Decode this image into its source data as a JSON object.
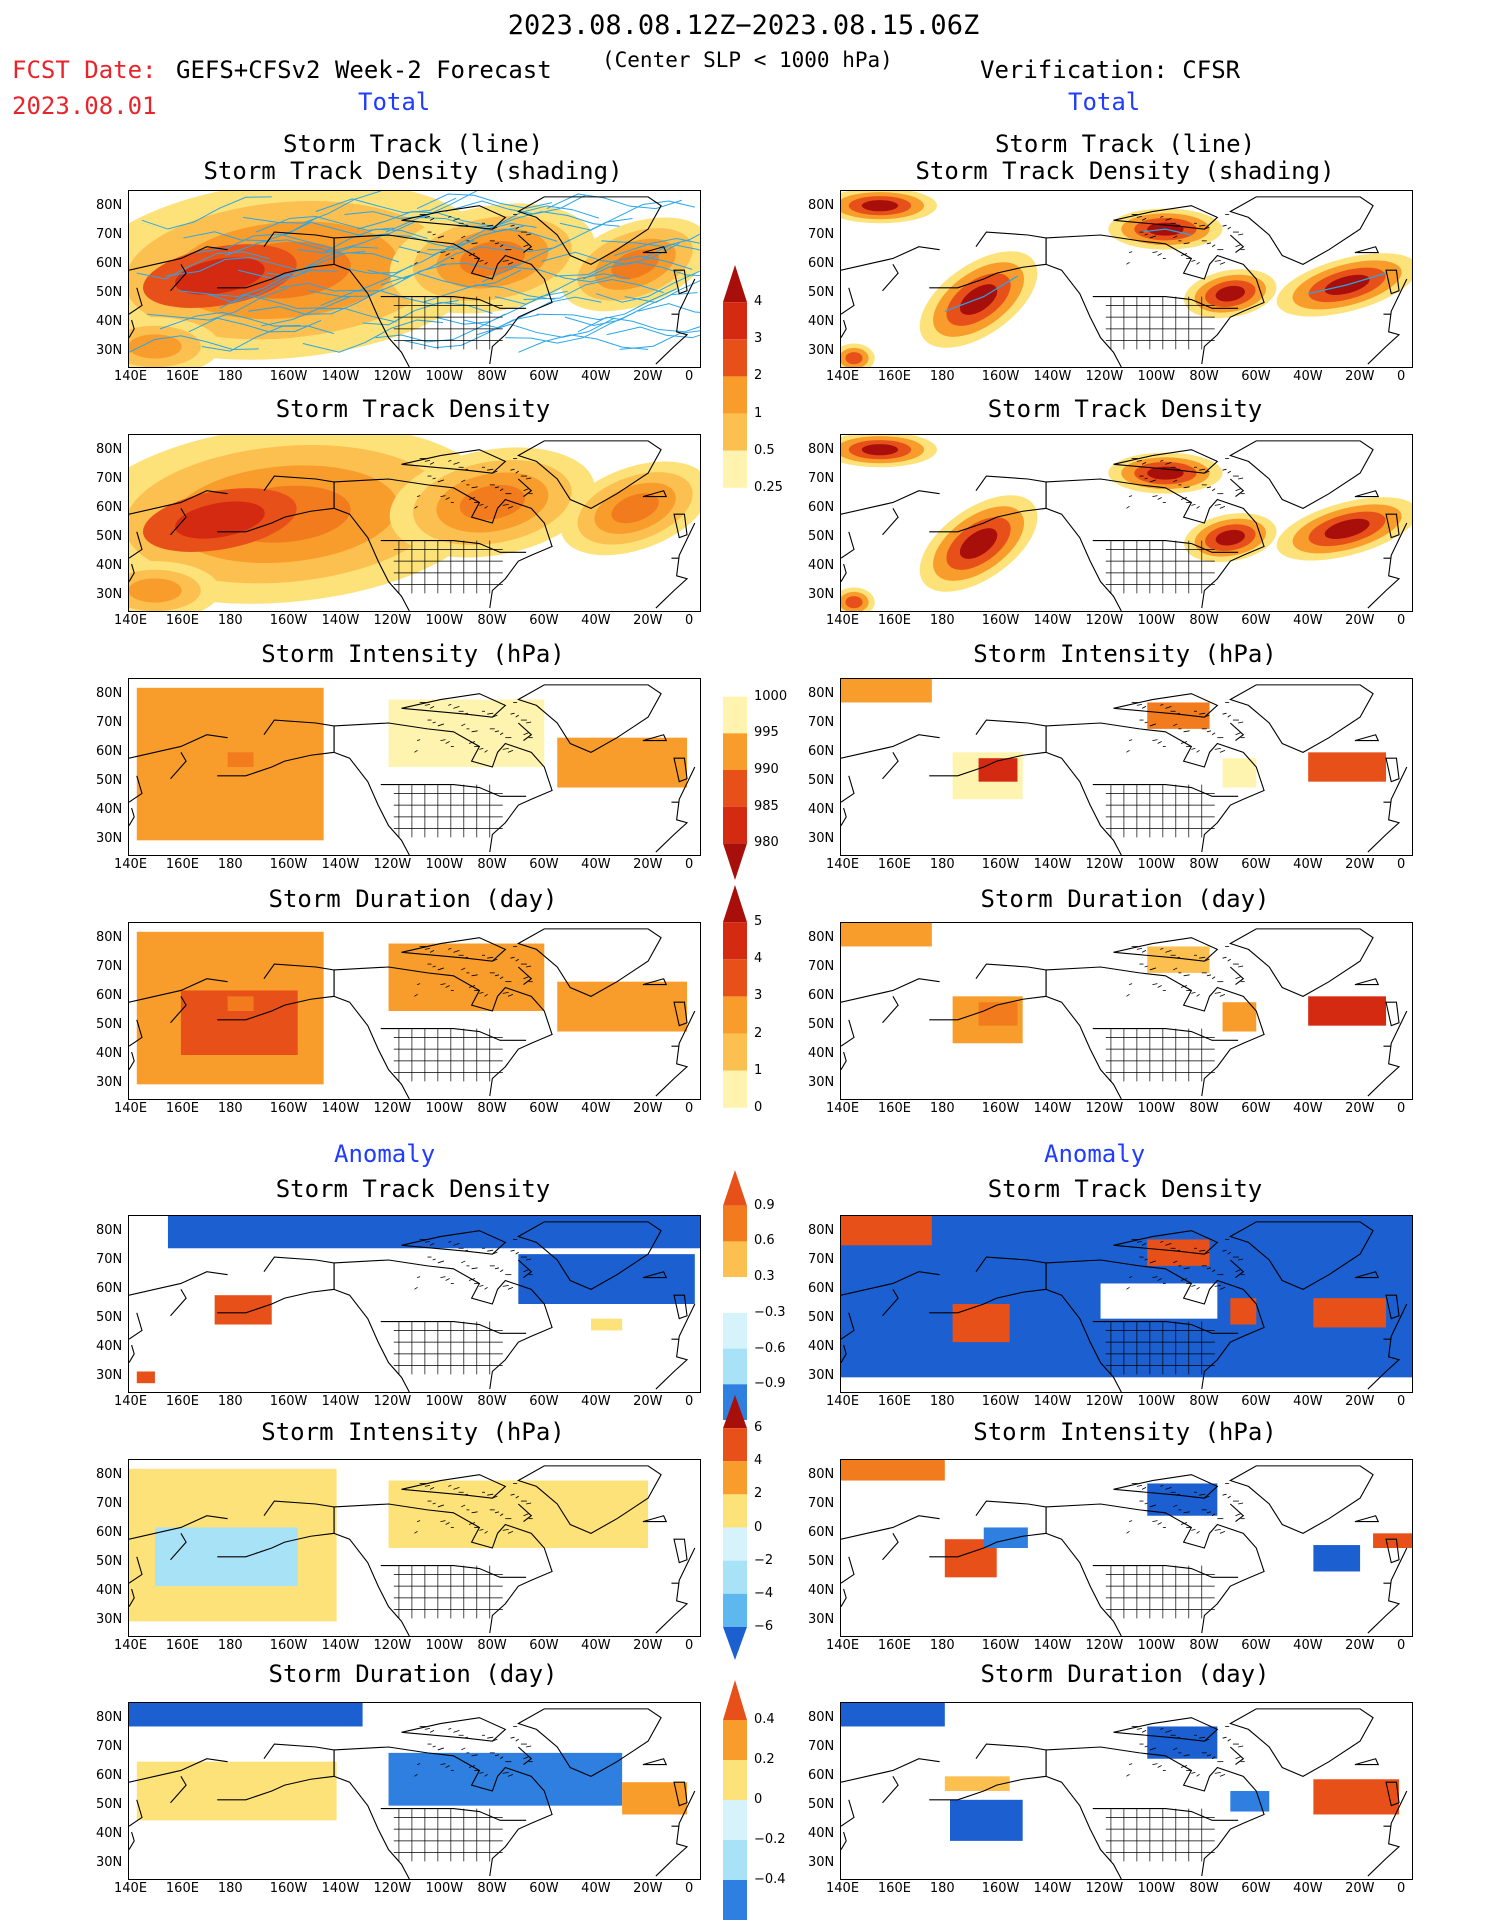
{
  "header": {
    "period": "2023.08.08.12Z−2023.08.15.06Z",
    "fcst_date_label": "FCST Date:",
    "fcst_date_value": "2023.08.01",
    "model": "GEFS+CFSv2 Week-2 Forecast",
    "criterion": "(Center SLP < 1000 hPa)",
    "verification": "Verification: CFSR"
  },
  "sections": {
    "total": "Total",
    "anomaly": "Anomaly"
  },
  "axes": {
    "lon_labels": [
      "140E",
      "160E",
      "180",
      "160W",
      "140W",
      "120W",
      "100W",
      "80W",
      "60W",
      "40W",
      "20W",
      "0"
    ],
    "lat_labels": [
      "80N",
      "70N",
      "60N",
      "50N",
      "40N",
      "30N"
    ]
  },
  "panel_titles": {
    "track": [
      "Storm Track (line)",
      "Storm Track Density (shading)"
    ],
    "density": "Storm Track Density",
    "intensity": "Storm Intensity (hPa)",
    "duration": "Storm Duration (day)"
  },
  "colorbars": {
    "density": [
      "4",
      "3",
      "2",
      "1",
      "0.5",
      "0.25"
    ],
    "intensity": [
      "1000",
      "995",
      "990",
      "985",
      "980"
    ],
    "duration": [
      "5",
      "4",
      "3",
      "2",
      "1",
      "0"
    ],
    "density_anom": [
      "0.9",
      "0.6",
      "0.3",
      "−0.3",
      "−0.6",
      "−0.9"
    ],
    "intensity_anom": [
      "6",
      "4",
      "2",
      "0",
      "−2",
      "−4",
      "−6"
    ],
    "duration_anom": [
      "0.4",
      "0.2",
      "0",
      "−0.2",
      "−0.4"
    ]
  },
  "colors": {
    "warm": [
      "#fff3b0",
      "#fde27a",
      "#fbc050",
      "#f89c2b",
      "#f27b1e",
      "#e8501a",
      "#d42a12",
      "#a80e0a"
    ],
    "cool": [
      "#d6f2fb",
      "#a8e2f7",
      "#5cb8ef",
      "#2e7fe0",
      "#1c5fd0"
    ],
    "track_line": "#2aa6e8"
  }
}
